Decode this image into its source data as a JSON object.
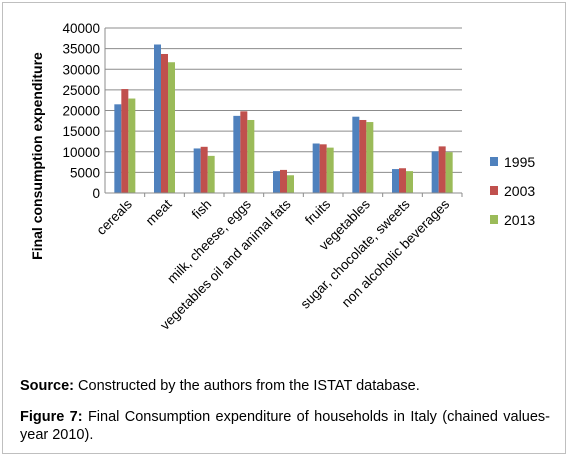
{
  "chart_data": {
    "type": "bar",
    "ylabel": "Final consumption expenditure",
    "ylim": [
      0,
      40000
    ],
    "yticks": [
      0,
      5000,
      10000,
      15000,
      20000,
      25000,
      30000,
      35000,
      40000
    ],
    "grid": true,
    "legend_position": "right",
    "categories": [
      "cereals",
      "meat",
      "fish",
      "milk, cheese, eggs",
      "vegetables oil and animal fats",
      "fruits",
      "vegetables",
      "sugar, chocolate, sweets",
      "non alcoholic beverages"
    ],
    "series": [
      {
        "name": "1995",
        "color": "#4f81bd",
        "values": [
          21500,
          36000,
          10800,
          18700,
          5300,
          12000,
          18500,
          5800,
          10100
        ]
      },
      {
        "name": "2003",
        "color": "#c0504d",
        "values": [
          25200,
          33700,
          11200,
          19800,
          5600,
          11800,
          17700,
          6000,
          11300
        ]
      },
      {
        "name": "2013",
        "color": "#9bbb59",
        "values": [
          22900,
          31700,
          9000,
          17700,
          4300,
          11000,
          17200,
          5300,
          9900
        ]
      }
    ]
  },
  "caption": {
    "source_label": "Source:",
    "source_text": " Constructed by the authors from the ISTAT database.",
    "figure_label": "Figure 7:",
    "figure_text": " Final Consumption expenditure of households in Italy (chained values- year 2010)."
  }
}
